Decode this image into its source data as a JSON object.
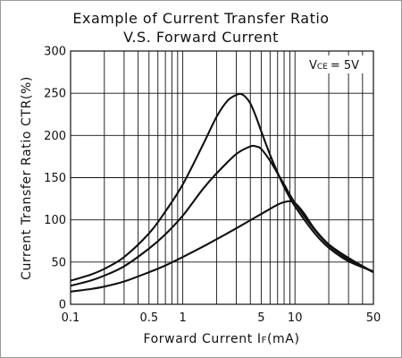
{
  "chart_data": {
    "type": "line",
    "title_line1": "Example of Current Transfer Ratio",
    "title_line2": "V.S. Forward Current",
    "xlabel_main": "Forward Current I",
    "xlabel_sub": "F",
    "xlabel_unit": "(mA)",
    "ylabel": "Current Transfer Ratio CTR(%)",
    "x_scale": "log",
    "xlim": [
      0.1,
      50
    ],
    "ylim": [
      0,
      300
    ],
    "x_ticks": [
      {
        "value": 0.1,
        "label": "0.1"
      },
      {
        "value": 0.5,
        "label": "0.5"
      },
      {
        "value": 1,
        "label": "1"
      },
      {
        "value": 5,
        "label": "5"
      },
      {
        "value": 10,
        "label": "10"
      },
      {
        "value": 50,
        "label": "50"
      }
    ],
    "y_ticks": [
      {
        "value": 0,
        "label": "0"
      },
      {
        "value": 50,
        "label": "50"
      },
      {
        "value": 100,
        "label": "100"
      },
      {
        "value": 150,
        "label": "150"
      },
      {
        "value": 200,
        "label": "200"
      },
      {
        "value": 250,
        "label": "250"
      },
      {
        "value": 300,
        "label": "300"
      }
    ],
    "condition_main": "V",
    "condition_sub": "CE",
    "condition_value": "= 5V",
    "grid": true,
    "series": [
      {
        "x": [
          0.1,
          0.15,
          0.2,
          0.3,
          0.5,
          0.7,
          1,
          1.5,
          2,
          2.5,
          3,
          3.3,
          3.6,
          4,
          4.5,
          5,
          6,
          7,
          8,
          10,
          15,
          20,
          30,
          50
        ],
        "y": [
          28,
          35,
          42,
          56,
          84,
          110,
          142,
          188,
          222,
          241,
          248,
          249,
          246,
          238,
          222,
          205,
          177,
          156,
          139,
          116,
          84,
          67,
          51,
          39
        ]
      },
      {
        "x": [
          0.1,
          0.15,
          0.2,
          0.3,
          0.5,
          0.7,
          1,
          1.5,
          2,
          3,
          4,
          4.5,
          5,
          6,
          7,
          8,
          10,
          15,
          20,
          30,
          50
        ],
        "y": [
          22,
          28,
          34,
          45,
          66,
          83,
          105,
          136,
          155,
          178,
          187,
          187,
          184,
          170,
          155,
          142,
          120,
          88,
          70,
          53,
          38
        ]
      },
      {
        "x": [
          0.1,
          0.15,
          0.2,
          0.3,
          0.5,
          0.7,
          1,
          1.5,
          2,
          3,
          5,
          7,
          8,
          9,
          10,
          12,
          15,
          20,
          30,
          50
        ],
        "y": [
          15,
          18,
          21,
          27,
          38,
          46,
          56,
          68,
          77,
          90,
          107,
          118,
          121,
          122,
          120,
          108,
          89,
          71,
          55,
          38
        ]
      }
    ]
  }
}
